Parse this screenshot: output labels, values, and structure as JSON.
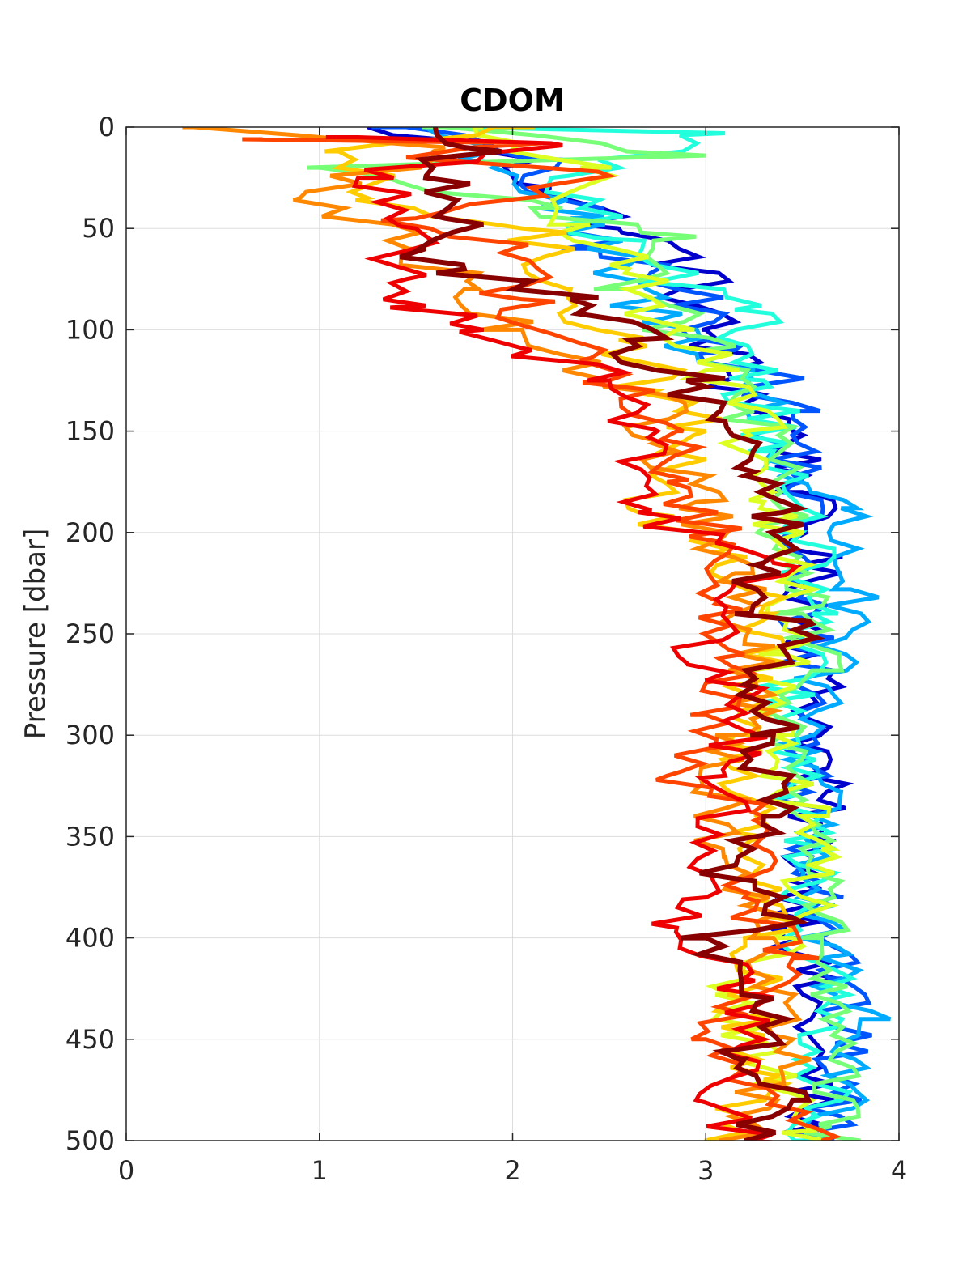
{
  "chart_data": {
    "type": "line",
    "title": "CDOM",
    "xlabel": "",
    "ylabel": "Pressure [dbar]",
    "xlim": [
      0,
      4
    ],
    "ylim": [
      0,
      500
    ],
    "y_reversed": true,
    "grid": true,
    "legend": "none",
    "xticks": [
      "0",
      "1",
      "2",
      "3",
      "4"
    ],
    "yticks": [
      "0",
      "50",
      "100",
      "150",
      "200",
      "250",
      "300",
      "350",
      "400",
      "450",
      "500"
    ],
    "colormap": "jet",
    "series": [
      {
        "color": "#0000cc",
        "points": [
          [
            1.25,
            0
          ],
          [
            1.9,
            10
          ],
          [
            2.2,
            30
          ],
          [
            2.55,
            50
          ],
          [
            2.9,
            65
          ],
          [
            3.0,
            100
          ],
          [
            3.2,
            130
          ],
          [
            3.45,
            150
          ],
          [
            3.5,
            180
          ],
          [
            3.55,
            210
          ],
          [
            3.55,
            250
          ],
          [
            3.6,
            300
          ],
          [
            3.55,
            350
          ],
          [
            3.5,
            400
          ],
          [
            3.55,
            450
          ],
          [
            3.5,
            500
          ]
        ]
      },
      {
        "color": "#0055ff",
        "points": [
          [
            1.45,
            0
          ],
          [
            2.05,
            15
          ],
          [
            2.2,
            35
          ],
          [
            2.45,
            60
          ],
          [
            2.85,
            80
          ],
          [
            3.15,
            110
          ],
          [
            3.45,
            140
          ],
          [
            3.5,
            175
          ],
          [
            3.45,
            220
          ],
          [
            3.55,
            260
          ],
          [
            3.55,
            300
          ],
          [
            3.5,
            340
          ],
          [
            3.65,
            380
          ],
          [
            3.7,
            420
          ],
          [
            3.7,
            470
          ],
          [
            3.6,
            500
          ]
        ]
      },
      {
        "color": "#00aaff",
        "points": [
          [
            1.55,
            0
          ],
          [
            1.95,
            18
          ],
          [
            2.3,
            45
          ],
          [
            2.5,
            70
          ],
          [
            2.75,
            95
          ],
          [
            3.2,
            120
          ],
          [
            3.35,
            160
          ],
          [
            3.7,
            188
          ],
          [
            3.75,
            228
          ],
          [
            3.6,
            270
          ],
          [
            3.5,
            310
          ],
          [
            3.7,
            328
          ],
          [
            3.5,
            370
          ],
          [
            3.6,
            410
          ],
          [
            3.8,
            440
          ],
          [
            3.65,
            500
          ]
        ]
      },
      {
        "color": "#22ffdd",
        "points": [
          [
            1.7,
            0
          ],
          [
            3.1,
            3
          ],
          [
            2.2,
            25
          ],
          [
            2.45,
            55
          ],
          [
            2.8,
            75
          ],
          [
            3.15,
            90
          ],
          [
            3.3,
            125
          ],
          [
            3.35,
            160
          ],
          [
            3.5,
            200
          ],
          [
            3.55,
            240
          ],
          [
            3.4,
            285
          ],
          [
            3.45,
            330
          ],
          [
            3.55,
            350
          ],
          [
            3.5,
            400
          ],
          [
            3.65,
            430
          ],
          [
            3.55,
            500
          ]
        ]
      },
      {
        "color": "#77ff77",
        "points": [
          [
            1.65,
            0
          ],
          [
            3.0,
            14
          ],
          [
            1.0,
            20
          ],
          [
            2.1,
            40
          ],
          [
            2.95,
            54
          ],
          [
            2.6,
            80
          ],
          [
            3.0,
            110
          ],
          [
            3.25,
            140
          ],
          [
            3.35,
            175
          ],
          [
            3.45,
            215
          ],
          [
            3.5,
            240
          ],
          [
            3.55,
            268
          ],
          [
            3.4,
            300
          ],
          [
            3.55,
            345
          ],
          [
            3.6,
            400
          ],
          [
            3.65,
            493
          ]
        ]
      },
      {
        "color": "#ddff22",
        "points": [
          [
            1.8,
            0
          ],
          [
            2.35,
            20
          ],
          [
            2.4,
            48
          ],
          [
            2.6,
            70
          ],
          [
            2.85,
            100
          ],
          [
            3.0,
            120
          ],
          [
            3.2,
            150
          ],
          [
            3.3,
            185
          ],
          [
            3.45,
            220
          ],
          [
            3.4,
            260
          ],
          [
            3.35,
            300
          ],
          [
            3.5,
            340
          ],
          [
            3.6,
            356
          ],
          [
            3.45,
            400
          ],
          [
            3.05,
            428
          ],
          [
            3.55,
            495
          ]
        ]
      },
      {
        "color": "#ffcc00",
        "points": [
          [
            1.9,
            0
          ],
          [
            1.1,
            12
          ],
          [
            1.25,
            35
          ],
          [
            2.05,
            50
          ],
          [
            2.3,
            80
          ],
          [
            2.55,
            105
          ],
          [
            2.75,
            130
          ],
          [
            3.0,
            150
          ],
          [
            2.65,
            190
          ],
          [
            3.05,
            210
          ],
          [
            3.35,
            240
          ],
          [
            3.25,
            270
          ],
          [
            3.15,
            300
          ],
          [
            3.3,
            350
          ],
          [
            3.35,
            390
          ],
          [
            3.2,
            430
          ],
          [
            3.3,
            470
          ],
          [
            3.0,
            500
          ]
        ]
      },
      {
        "color": "#ff8800",
        "points": [
          [
            0.35,
            0
          ],
          [
            1.65,
            10
          ],
          [
            0.9,
            35
          ],
          [
            1.55,
            60
          ],
          [
            1.75,
            80
          ],
          [
            2.05,
            100
          ],
          [
            2.65,
            130
          ],
          [
            2.75,
            155
          ],
          [
            2.95,
            185
          ],
          [
            3.15,
            220
          ],
          [
            3.2,
            255
          ],
          [
            3.3,
            290
          ],
          [
            3.05,
            300
          ],
          [
            3.1,
            360
          ],
          [
            3.35,
            400
          ],
          [
            3.45,
            450
          ],
          [
            3.15,
            500
          ]
        ]
      },
      {
        "color": "#ff4400",
        "points": [
          [
            0.6,
            6
          ],
          [
            2.15,
            8
          ],
          [
            1.45,
            15
          ],
          [
            2.5,
            24
          ],
          [
            1.5,
            45
          ],
          [
            2.0,
            60
          ],
          [
            2.05,
            85
          ],
          [
            2.35,
            115
          ],
          [
            2.5,
            125
          ],
          [
            2.85,
            150
          ],
          [
            2.8,
            175
          ],
          [
            3.1,
            205
          ],
          [
            3.05,
            235
          ],
          [
            3.2,
            260
          ],
          [
            3.0,
            290
          ],
          [
            2.8,
            320
          ],
          [
            3.3,
            340
          ],
          [
            3.2,
            380
          ],
          [
            3.45,
            410
          ],
          [
            3.0,
            450
          ],
          [
            3.6,
            500
          ]
        ]
      },
      {
        "color": "#ee0000",
        "points": [
          [
            1.2,
            5
          ],
          [
            2.2,
            8
          ],
          [
            1.2,
            25
          ],
          [
            1.5,
            50
          ],
          [
            1.45,
            75
          ],
          [
            1.55,
            88
          ],
          [
            1.85,
            100
          ],
          [
            2.1,
            110
          ],
          [
            2.5,
            125
          ],
          [
            2.75,
            150
          ],
          [
            2.65,
            190
          ],
          [
            3.05,
            205
          ],
          [
            3.35,
            215
          ],
          [
            2.9,
            265
          ],
          [
            3.25,
            280
          ],
          [
            3.1,
            320
          ],
          [
            3.0,
            380
          ],
          [
            2.85,
            395
          ],
          [
            3.2,
            420
          ],
          [
            3.3,
            450
          ],
          [
            2.95,
            480
          ],
          [
            3.25,
            500
          ]
        ]
      },
      {
        "color": "#880000",
        "points": [
          [
            1.6,
            0
          ],
          [
            1.75,
            10
          ],
          [
            1.55,
            25
          ],
          [
            1.65,
            45
          ],
          [
            1.55,
            60
          ],
          [
            1.75,
            70
          ],
          [
            2.3,
            85
          ],
          [
            2.6,
            105
          ],
          [
            2.9,
            125
          ],
          [
            3.1,
            145
          ],
          [
            3.25,
            170
          ],
          [
            3.4,
            190
          ],
          [
            3.3,
            215
          ],
          [
            3.15,
            240
          ],
          [
            3.55,
            245
          ],
          [
            3.2,
            275
          ],
          [
            3.35,
            300
          ],
          [
            3.3,
            340
          ],
          [
            3.1,
            370
          ],
          [
            3.45,
            390
          ],
          [
            3.0,
            400
          ],
          [
            3.35,
            430
          ],
          [
            3.2,
            460
          ],
          [
            3.45,
            480
          ],
          [
            3.2,
            500
          ]
        ]
      }
    ]
  }
}
